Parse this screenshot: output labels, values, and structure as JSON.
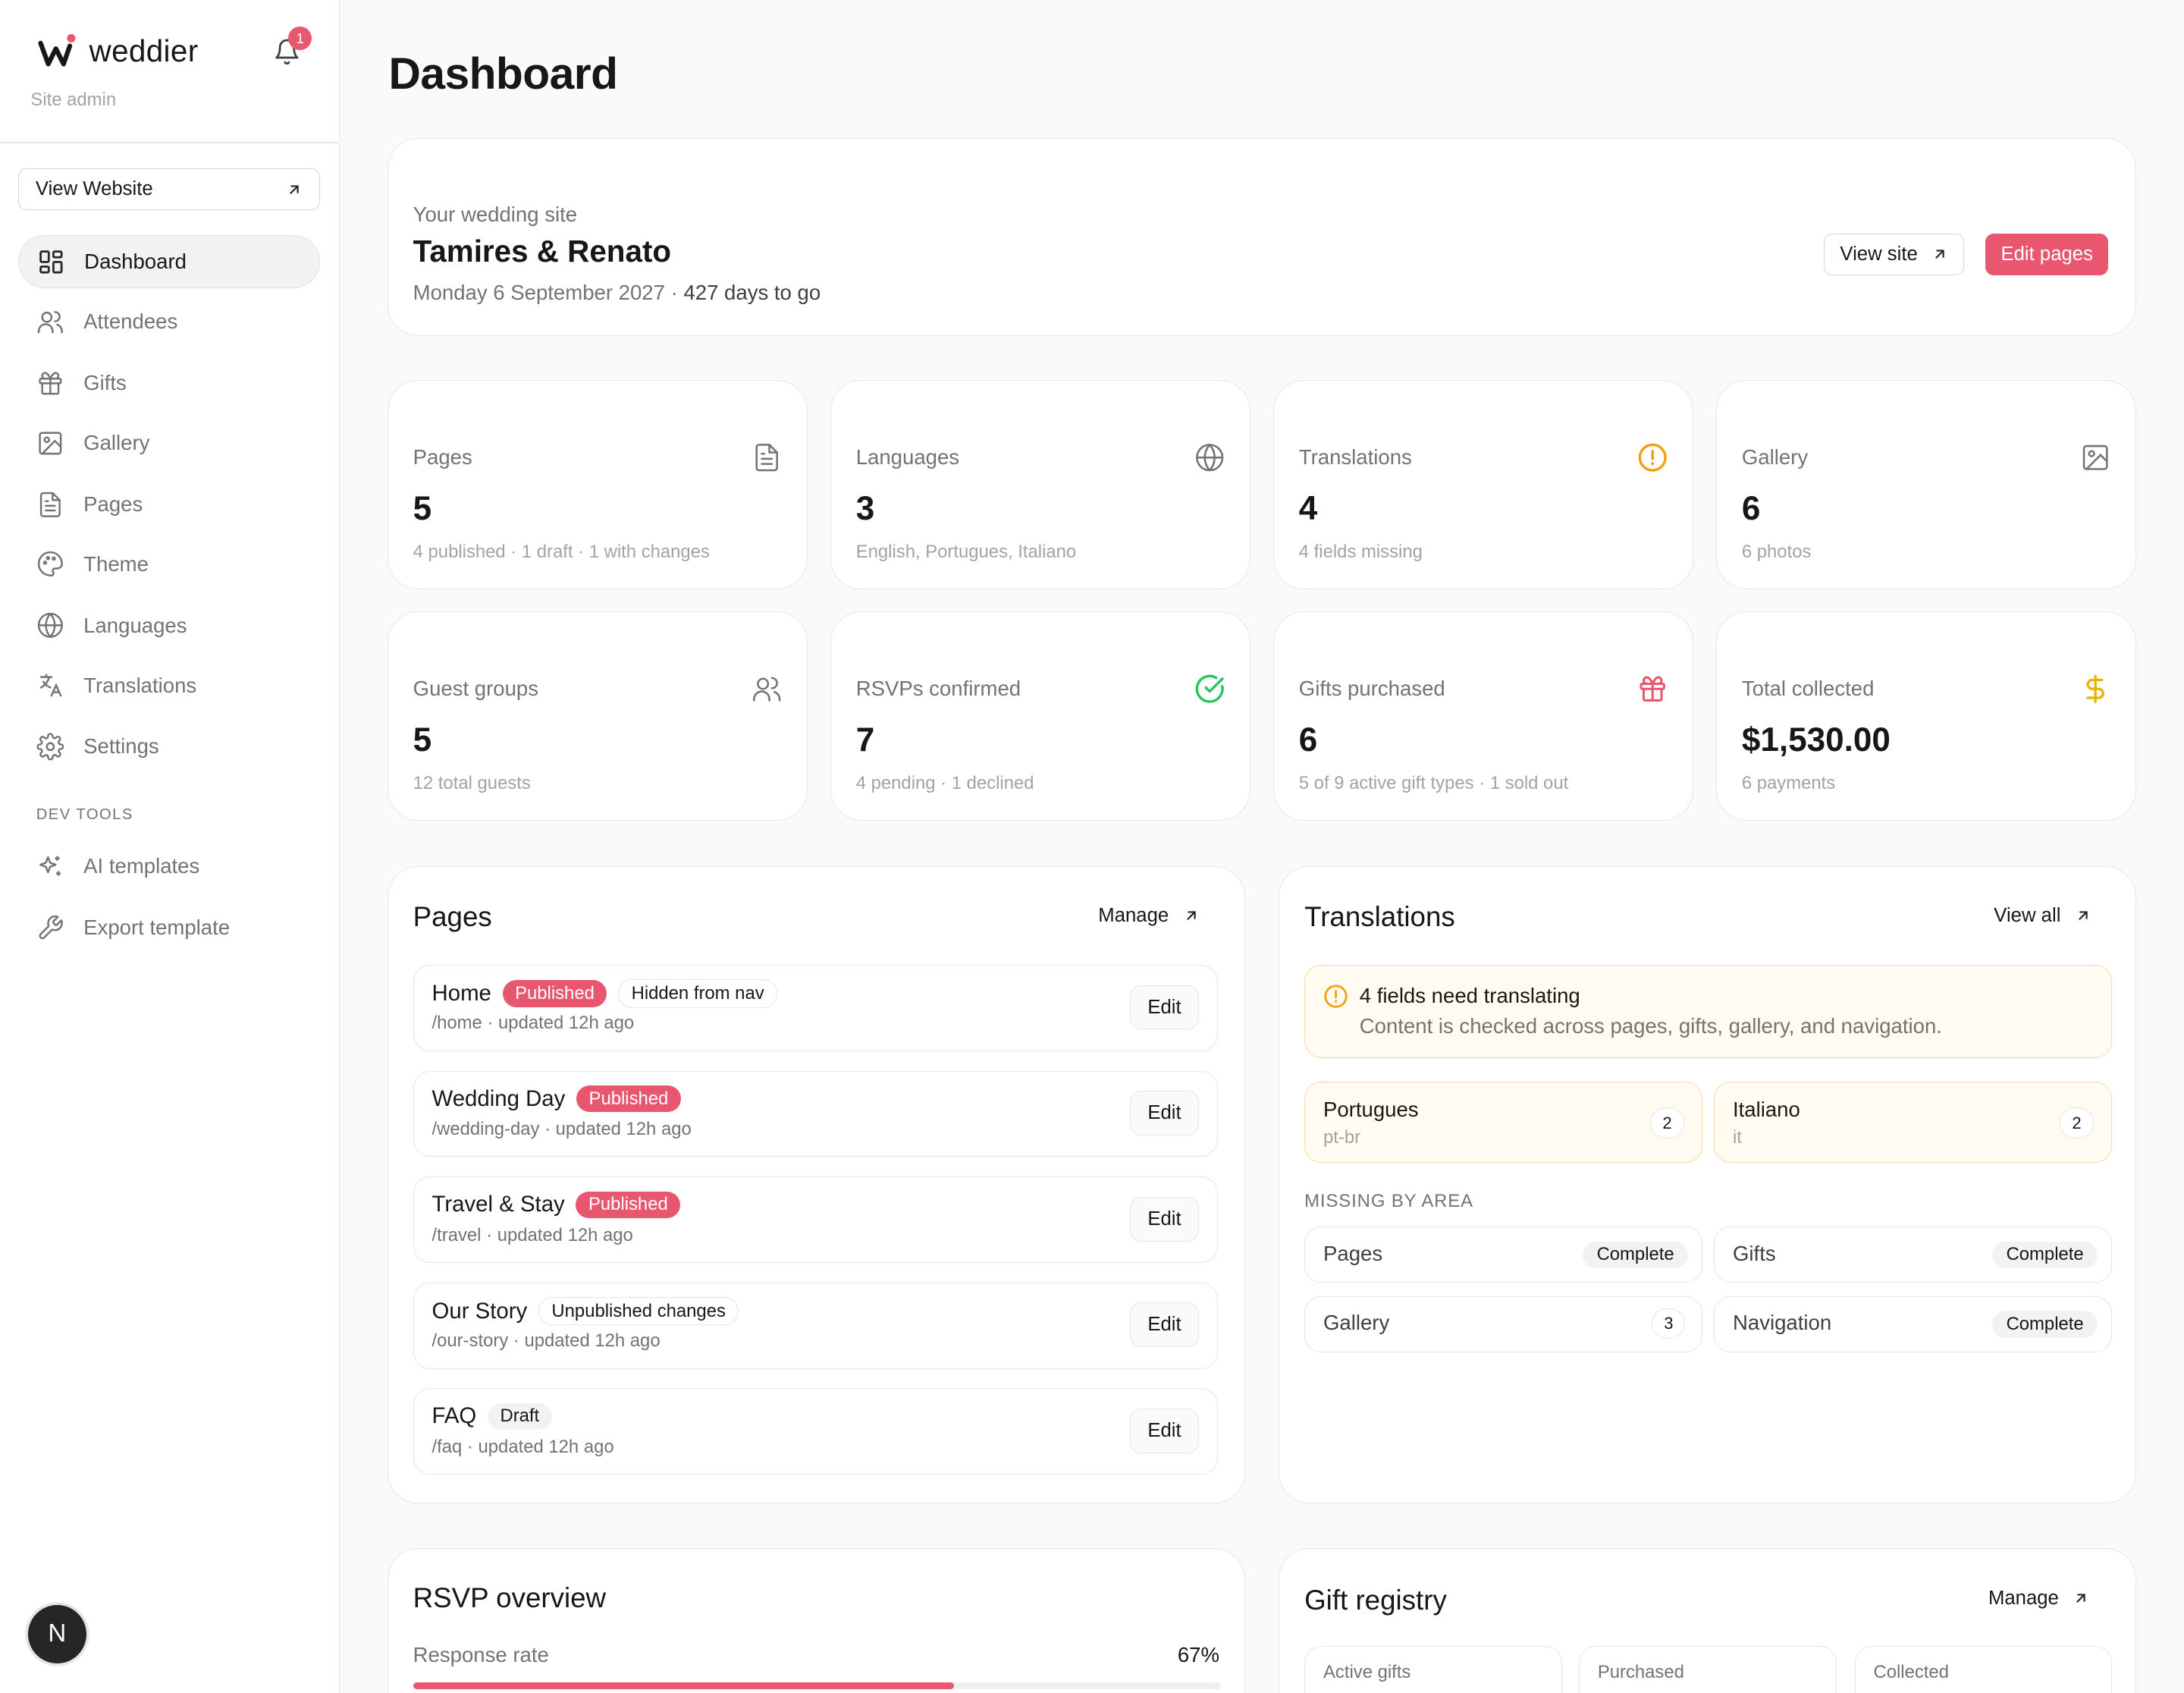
{
  "brand": {
    "name": "weddier",
    "subtitle": "Site admin",
    "notification_count": "1"
  },
  "sidebar": {
    "view_website": "View Website",
    "items": [
      {
        "label": "Dashboard",
        "icon": "dashboard-icon"
      },
      {
        "label": "Attendees",
        "icon": "users-icon"
      },
      {
        "label": "Gifts",
        "icon": "gift-icon"
      },
      {
        "label": "Gallery",
        "icon": "image-icon"
      },
      {
        "label": "Pages",
        "icon": "file-icon"
      },
      {
        "label": "Theme",
        "icon": "palette-icon"
      },
      {
        "label": "Languages",
        "icon": "globe-icon"
      },
      {
        "label": "Translations",
        "icon": "translate-icon"
      },
      {
        "label": "Settings",
        "icon": "gear-icon"
      }
    ],
    "dev_tools_heading": "DEV TOOLS",
    "dev_items": [
      {
        "label": "AI templates",
        "icon": "sparkles-icon"
      },
      {
        "label": "Export template",
        "icon": "wrench-icon"
      }
    ],
    "avatar_letter": "N"
  },
  "header": {
    "title": "Dashboard"
  },
  "site": {
    "label": "Your wedding site",
    "name": "Tamires & Renato",
    "date": "Monday 6 September 2027 · ",
    "countdown": "427 days to go",
    "view_site": "View site",
    "edit_pages": "Edit pages"
  },
  "stats": [
    {
      "label": "Pages",
      "value": "5",
      "sub": "4 published · 1 draft · 1 with changes",
      "icon": "file-icon"
    },
    {
      "label": "Languages",
      "value": "3",
      "sub": "English, Portugues, Italiano",
      "icon": "globe-icon"
    },
    {
      "label": "Translations",
      "value": "4",
      "sub": "4 fields missing",
      "icon": "alert-circle-icon"
    },
    {
      "label": "Gallery",
      "value": "6",
      "sub": "6 photos",
      "icon": "image-icon"
    },
    {
      "label": "Guest groups",
      "value": "5",
      "sub": "12 total guests",
      "icon": "users-icon"
    },
    {
      "label": "RSVPs confirmed",
      "value": "7",
      "sub": "4 pending · 1 declined",
      "icon": "check-circle-icon"
    },
    {
      "label": "Gifts purchased",
      "value": "6",
      "sub": "5 of 9 active gift types · 1 sold out",
      "icon": "gift-icon"
    },
    {
      "label": "Total collected",
      "value": "$1,530.00",
      "sub": "6 payments",
      "icon": "dollar-icon"
    }
  ],
  "colors": {
    "accent": "#e8576f",
    "warning": "#f59e0b",
    "success": "#22c55e"
  },
  "pages_panel": {
    "title": "Pages",
    "manage": "Manage",
    "edit_label": "Edit",
    "rows": [
      {
        "title": "Home",
        "badges": [
          "Published",
          "Hidden from nav"
        ],
        "sub": "/home · updated 12h ago"
      },
      {
        "title": "Wedding Day",
        "badges": [
          "Published"
        ],
        "sub": "/wedding-day · updated 12h ago"
      },
      {
        "title": "Travel & Stay",
        "badges": [
          "Published"
        ],
        "sub": "/travel · updated 12h ago"
      },
      {
        "title": "Our Story",
        "badges": [
          "Unpublished changes"
        ],
        "sub": "/our-story · updated 12h ago"
      },
      {
        "title": "FAQ",
        "badges": [
          "Draft"
        ],
        "sub": "/faq · updated 12h ago"
      }
    ]
  },
  "translations_panel": {
    "title": "Translations",
    "view_all": "View all",
    "warning_title": "4 fields need translating",
    "warning_sub": "Content is checked across pages, gifts, gallery, and navigation.",
    "languages": [
      {
        "name": "Portugues",
        "code": "pt-br",
        "count": "2"
      },
      {
        "name": "Italiano",
        "code": "it",
        "count": "2"
      }
    ],
    "missing_heading": "MISSING BY AREA",
    "areas": [
      {
        "name": "Pages",
        "status": "Complete"
      },
      {
        "name": "Gifts",
        "status": "Complete"
      },
      {
        "name": "Gallery",
        "status": "3"
      },
      {
        "name": "Navigation",
        "status": "Complete"
      }
    ]
  },
  "rsvp": {
    "title": "RSVP overview",
    "rate_label": "Response rate",
    "rate_value": "67%",
    "rate_fraction": 0.67
  },
  "gift_registry": {
    "title": "Gift registry",
    "manage": "Manage",
    "cards": [
      "Active gifts",
      "Purchased",
      "Collected"
    ]
  }
}
